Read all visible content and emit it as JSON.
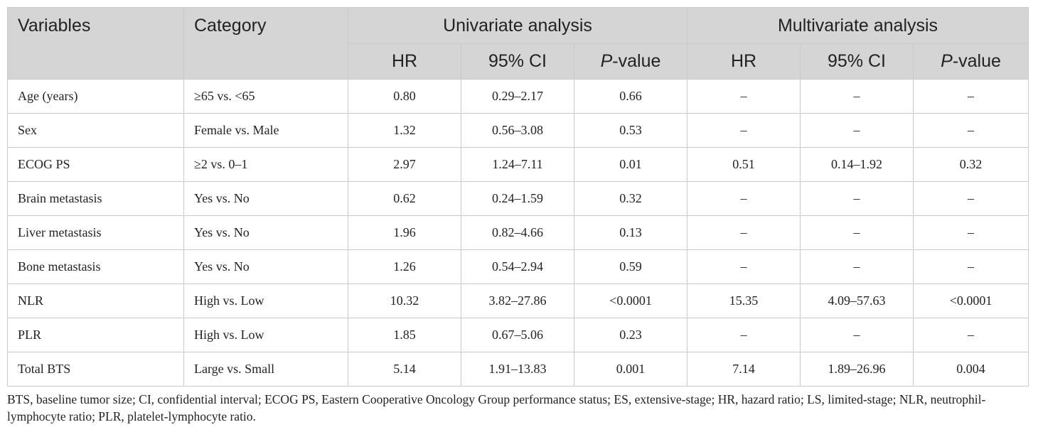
{
  "headers": {
    "variables": "Variables",
    "category": "Category",
    "univariate": "Univariate analysis",
    "multivariate": "Multivariate analysis",
    "hr": "HR",
    "ci": "95% CI",
    "p_italic": "P",
    "p_suffix": "-value"
  },
  "rows": [
    {
      "variable": "Age (years)",
      "category": "≥65 vs. <65",
      "u_hr": "0.80",
      "u_ci": "0.29–2.17",
      "u_p": "0.66",
      "m_hr": "–",
      "m_ci": "–",
      "m_p": "–"
    },
    {
      "variable": "Sex",
      "category": "Female vs. Male",
      "u_hr": "1.32",
      "u_ci": "0.56–3.08",
      "u_p": "0.53",
      "m_hr": "–",
      "m_ci": "–",
      "m_p": "–"
    },
    {
      "variable": "ECOG PS",
      "category": "≥2 vs. 0–1",
      "u_hr": "2.97",
      "u_ci": "1.24–7.11",
      "u_p": "0.01",
      "m_hr": "0.51",
      "m_ci": "0.14–1.92",
      "m_p": "0.32"
    },
    {
      "variable": "Brain metastasis",
      "category": "Yes vs. No",
      "u_hr": "0.62",
      "u_ci": "0.24–1.59",
      "u_p": "0.32",
      "m_hr": "–",
      "m_ci": "–",
      "m_p": "–"
    },
    {
      "variable": "Liver metastasis",
      "category": "Yes vs. No",
      "u_hr": "1.96",
      "u_ci": "0.82–4.66",
      "u_p": "0.13",
      "m_hr": "–",
      "m_ci": "–",
      "m_p": "–"
    },
    {
      "variable": "Bone metastasis",
      "category": "Yes vs. No",
      "u_hr": "1.26",
      "u_ci": "0.54–2.94",
      "u_p": "0.59",
      "m_hr": "–",
      "m_ci": "–",
      "m_p": "–"
    },
    {
      "variable": "NLR",
      "category": "High vs. Low",
      "u_hr": "10.32",
      "u_ci": "3.82–27.86",
      "u_p": "<0.0001",
      "m_hr": "15.35",
      "m_ci": "4.09–57.63",
      "m_p": "<0.0001"
    },
    {
      "variable": "PLR",
      "category": "High vs. Low",
      "u_hr": "1.85",
      "u_ci": "0.67–5.06",
      "u_p": "0.23",
      "m_hr": "–",
      "m_ci": "–",
      "m_p": "–"
    },
    {
      "variable": "Total BTS",
      "category": "Large vs. Small",
      "u_hr": "5.14",
      "u_ci": "1.91–13.83",
      "u_p": "0.001",
      "m_hr": "7.14",
      "m_ci": "1.89–26.96",
      "m_p": "0.004"
    }
  ],
  "footnote": "BTS, baseline tumor size; CI, confidential interval; ECOG PS, Eastern Cooperative Oncology Group performance status; ES, extensive-stage; HR, hazard ratio; LS, limited-stage; NLR, neutrophil-lymphocyte ratio; PLR, platelet-lymphocyte ratio."
}
